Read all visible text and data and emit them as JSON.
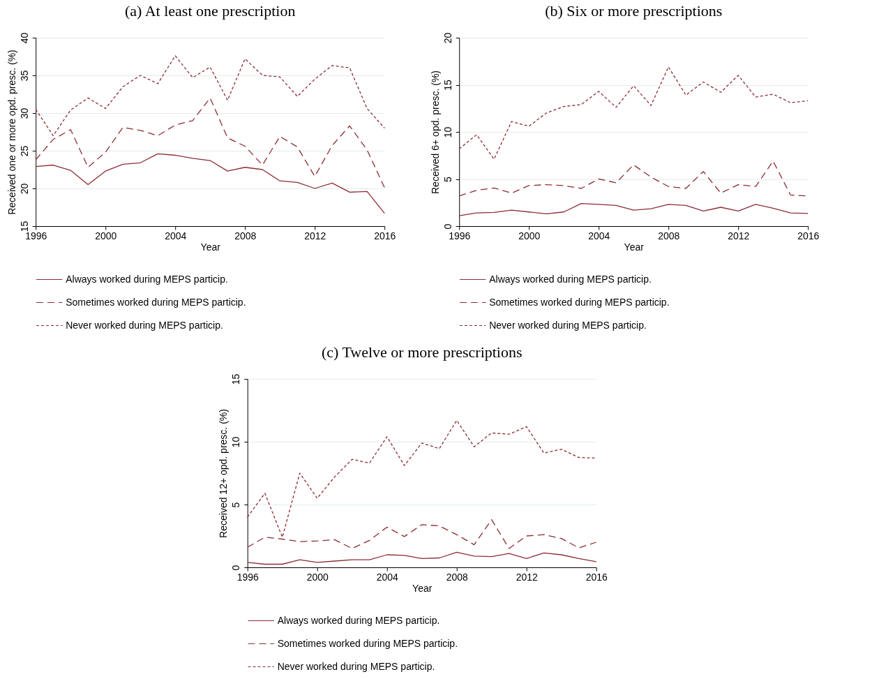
{
  "chart_data": [
    {
      "type": "line",
      "title": "(a) At least one prescription",
      "xlabel": "Year",
      "ylabel": "Received one or more opd. presc. (%)",
      "x": [
        1996,
        1997,
        1998,
        1999,
        2000,
        2001,
        2002,
        2003,
        2004,
        2005,
        2006,
        2007,
        2008,
        2009,
        2010,
        2011,
        2012,
        2013,
        2014,
        2015,
        2016
      ],
      "xlim": [
        1996,
        2016
      ],
      "xticks": [
        1996,
        2000,
        2004,
        2008,
        2012,
        2016
      ],
      "ylim": [
        15,
        40
      ],
      "yticks": [
        15,
        20,
        25,
        30,
        35,
        40
      ],
      "grid": "y",
      "legend": "bottom",
      "series": [
        {
          "name": "Always worked during MEPS particip.",
          "color": "#8c2d34",
          "line_style": "solid",
          "values": [
            22.9,
            23.1,
            22.4,
            20.5,
            22.3,
            23.2,
            23.4,
            24.6,
            24.4,
            24.0,
            23.7,
            22.3,
            22.8,
            22.5,
            21.0,
            20.8,
            20.0,
            20.7,
            19.5,
            19.6,
            16.7
          ]
        },
        {
          "name": "Sometimes worked during MEPS particip.",
          "color": "#8c2d34",
          "line_style": "dashed",
          "values": [
            23.8,
            26.5,
            27.8,
            22.8,
            24.8,
            28.1,
            27.7,
            27.0,
            28.4,
            29.0,
            32.0,
            26.7,
            25.6,
            23.1,
            26.9,
            25.5,
            21.6,
            25.7,
            28.3,
            25.1,
            20.1
          ]
        },
        {
          "name": "Never worked during MEPS particip.",
          "color": "#8c2d34",
          "line_style": "dotted",
          "values": [
            30.5,
            27.0,
            30.4,
            32.0,
            30.6,
            33.5,
            35.0,
            33.9,
            37.6,
            34.7,
            36.1,
            31.7,
            37.2,
            35.0,
            34.8,
            32.2,
            34.5,
            36.3,
            36.0,
            30.6,
            28.0
          ]
        }
      ]
    },
    {
      "type": "line",
      "title": "(b) Six or more prescriptions",
      "xlabel": "Year",
      "ylabel": "Received 6+ opd. presc. (%)",
      "x": [
        1996,
        1997,
        1998,
        1999,
        2000,
        2001,
        2002,
        2003,
        2004,
        2005,
        2006,
        2007,
        2008,
        2009,
        2010,
        2011,
        2012,
        2013,
        2014,
        2015,
        2016
      ],
      "xlim": [
        1996,
        2016
      ],
      "xticks": [
        1996,
        2000,
        2004,
        2008,
        2012,
        2016
      ],
      "ylim": [
        0,
        20
      ],
      "yticks": [
        0,
        5,
        10,
        15,
        20
      ],
      "grid": "y",
      "legend": "bottom",
      "series": [
        {
          "name": "Always worked during MEPS particip.",
          "color": "#8c2d34",
          "line_style": "solid",
          "values": [
            1.1,
            1.4,
            1.45,
            1.7,
            1.5,
            1.3,
            1.5,
            2.4,
            2.3,
            2.2,
            1.7,
            1.85,
            2.3,
            2.2,
            1.6,
            2.0,
            1.6,
            2.3,
            1.9,
            1.4,
            1.35
          ]
        },
        {
          "name": "Sometimes worked during MEPS particip.",
          "color": "#8c2d34",
          "line_style": "dashed",
          "values": [
            3.2,
            3.8,
            4.05,
            3.5,
            4.3,
            4.4,
            4.3,
            4.0,
            5.0,
            4.6,
            6.5,
            5.2,
            4.2,
            4.0,
            5.8,
            3.5,
            4.4,
            4.2,
            6.9,
            3.3,
            3.2
          ]
        },
        {
          "name": "Never worked during MEPS particip.",
          "color": "#8c2d34",
          "line_style": "dotted",
          "values": [
            8.2,
            9.7,
            7.1,
            11.1,
            10.6,
            12.0,
            12.7,
            12.9,
            14.3,
            12.6,
            14.9,
            12.8,
            16.9,
            13.9,
            15.3,
            14.2,
            16.0,
            13.7,
            14.0,
            13.1,
            13.3
          ]
        }
      ]
    },
    {
      "type": "line",
      "title": "(c) Twelve or more prescriptions",
      "xlabel": "Year",
      "ylabel": "Received 12+ opd. presc. (%)",
      "x": [
        1996,
        1997,
        1998,
        1999,
        2000,
        2001,
        2002,
        2003,
        2004,
        2005,
        2006,
        2007,
        2008,
        2009,
        2010,
        2011,
        2012,
        2013,
        2014,
        2015,
        2016
      ],
      "xlim": [
        1996,
        2016
      ],
      "xticks": [
        1996,
        2000,
        2004,
        2008,
        2012,
        2016
      ],
      "ylim": [
        0,
        15
      ],
      "yticks": [
        0,
        5,
        10,
        15
      ],
      "grid": "y",
      "legend": "bottom",
      "series": [
        {
          "name": "Always worked during MEPS particip.",
          "color": "#8c2d34",
          "line_style": "solid",
          "values": [
            0.4,
            0.25,
            0.25,
            0.6,
            0.4,
            0.5,
            0.6,
            0.6,
            1.0,
            0.95,
            0.7,
            0.75,
            1.2,
            0.9,
            0.85,
            1.1,
            0.7,
            1.15,
            1.0,
            0.7,
            0.45
          ]
        },
        {
          "name": "Sometimes worked during MEPS particip.",
          "color": "#8c2d34",
          "line_style": "dashed",
          "values": [
            1.6,
            2.4,
            2.25,
            2.05,
            2.1,
            2.2,
            1.5,
            2.15,
            3.2,
            2.45,
            3.4,
            3.3,
            2.6,
            1.8,
            3.8,
            1.5,
            2.5,
            2.6,
            2.3,
            1.55,
            2.0
          ]
        },
        {
          "name": "Never worked during MEPS particip.",
          "color": "#8c2d34",
          "line_style": "dotted",
          "values": [
            4.0,
            5.9,
            2.4,
            7.5,
            5.5,
            7.2,
            8.6,
            8.3,
            10.4,
            8.1,
            9.9,
            9.45,
            11.7,
            9.6,
            10.7,
            10.6,
            11.2,
            9.1,
            9.4,
            8.75,
            8.7
          ]
        }
      ]
    }
  ]
}
